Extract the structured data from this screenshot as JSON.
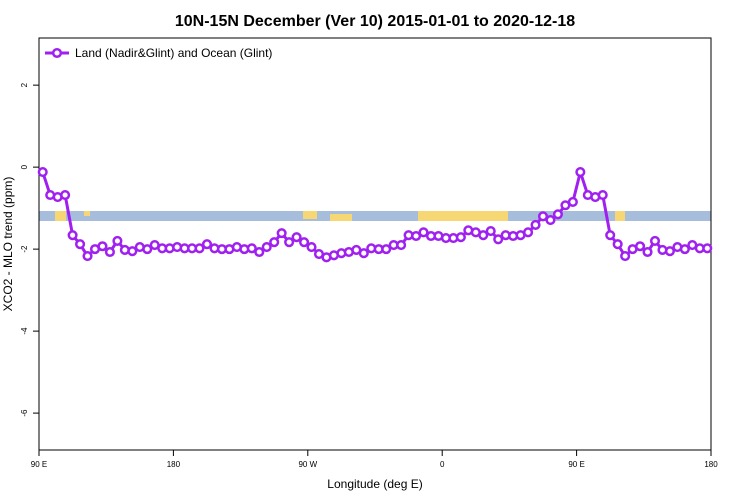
{
  "chart_data": {
    "type": "line",
    "title": "10N-15N December (Ver 10)   2015-01-01 to 2020-12-18",
    "x_label": "Longitude (deg E)",
    "y_label": "XCO2 - MLO trend (ppm)",
    "x": [
      92.5,
      97.5,
      102.5,
      107.5,
      112.5,
      117.5,
      122.5,
      127.5,
      132.5,
      137.5,
      142.5,
      147.5,
      152.5,
      157.5,
      162.5,
      167.5,
      172.5,
      177.5,
      182.5,
      187.5,
      192.5,
      197.5,
      202.5,
      207.5,
      212.5,
      217.5,
      222.5,
      227.5,
      232.5,
      237.5,
      242.5,
      247.5,
      252.5,
      257.5,
      262.5,
      267.5,
      272.5,
      277.5,
      282.5,
      287.5,
      292.5,
      297.5,
      302.5,
      307.5,
      312.5,
      317.5,
      322.5,
      327.5,
      332.5,
      337.5,
      342.5,
      347.5,
      352.5,
      357.5,
      362.5,
      367.5,
      372.5,
      377.5,
      382.5,
      387.5,
      392.5,
      397.5,
      402.5,
      407.5,
      412.5,
      417.5,
      422.5,
      427.5,
      432.5,
      437.5,
      442.5,
      447.5,
      452.5,
      457.5,
      462.5,
      467.5,
      472.5,
      477.5,
      482.5,
      487.5,
      492.5,
      497.5,
      502.5,
      507.5,
      512.5,
      517.5,
      522.5,
      527.5,
      532.5,
      537.5
    ],
    "series": [
      {
        "name": "Land (Nadir&Glint) and Ocean (Glint)",
        "color": "#a020f0",
        "values": [
          -0.12,
          -0.68,
          -0.73,
          -0.68,
          -1.66,
          -1.88,
          -2.17,
          -2.0,
          -1.93,
          -2.07,
          -1.8,
          -2.02,
          -2.05,
          -1.95,
          -2.0,
          -1.9,
          -1.98,
          -1.98,
          -1.95,
          -1.98,
          -1.98,
          -1.98,
          -1.88,
          -1.98,
          -2.0,
          -2.0,
          -1.95,
          -2.0,
          -1.98,
          -2.07,
          -1.95,
          -1.83,
          -1.61,
          -1.83,
          -1.71,
          -1.83,
          -1.95,
          -2.12,
          -2.2,
          -2.15,
          -2.1,
          -2.07,
          -2.02,
          -2.1,
          -1.98,
          -2.0,
          -2.0,
          -1.9,
          -1.9,
          -1.66,
          -1.68,
          -1.59,
          -1.68,
          -1.68,
          -1.73,
          -1.73,
          -1.71,
          -1.54,
          -1.59,
          -1.66,
          -1.56,
          -1.76,
          -1.66,
          -1.68,
          -1.66,
          -1.59,
          -1.41,
          -1.2,
          -1.29,
          -1.15,
          -0.93,
          -0.85,
          -0.12,
          -0.68,
          -0.73,
          -0.68,
          -1.66,
          -1.88,
          -2.17,
          -2.0,
          -1.93,
          -2.07,
          -1.8,
          -2.02,
          -2.05,
          -1.95,
          -2.0,
          -1.9,
          -1.98,
          -1.98
        ]
      }
    ],
    "xlim": [
      90,
      540
    ],
    "xticks": [
      {
        "value": 90,
        "label": "90 E"
      },
      180,
      {
        "value": 270,
        "label": "90 W"
      },
      {
        "value": 360,
        "label": "0"
      },
      {
        "value": 450,
        "label": "90 E"
      },
      {
        "value": 540,
        "label": "180"
      }
    ],
    "ylim": [
      -6.9,
      3.15
    ],
    "yticks": [
      2,
      0,
      -2,
      -4,
      -6
    ],
    "grid": false,
    "legend": "top-left"
  }
}
